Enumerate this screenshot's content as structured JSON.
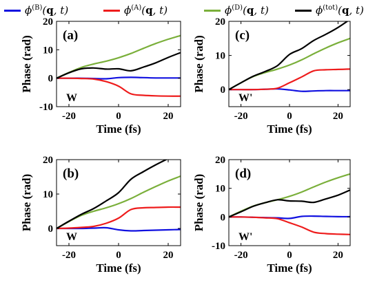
{
  "legend": {
    "items": [
      {
        "base": "ϕ",
        "sup": "(B)",
        "args_bold": "q",
        "args_rest": ", t",
        "color": "#1010e0"
      },
      {
        "base": "ϕ",
        "sup": "(A)",
        "args_bold": "q",
        "args_rest": ", t",
        "color": "#ee1c1c"
      },
      {
        "base": "ϕ",
        "sup": "(D)",
        "args_bold": "q",
        "args_rest": ", t",
        "color": "#7aaf3a"
      },
      {
        "base": "ϕ",
        "sup": "(tot)",
        "args_bold": "q",
        "args_rest": ", t",
        "color": "#000000"
      }
    ]
  },
  "chart_data": [
    {
      "panel": "(a)",
      "corner_label": "W",
      "type": "line",
      "xlabel": "Time (fs)",
      "ylabel": "Phase (rad)",
      "xlim": [
        -25,
        25
      ],
      "ylim": [
        -10,
        20
      ],
      "xticks": [
        -20,
        0,
        20
      ],
      "yticks": [
        -10,
        0,
        10,
        20
      ],
      "x": [
        -25,
        -20,
        -15,
        -10,
        -5,
        0,
        5,
        10,
        15,
        20,
        25
      ],
      "series": [
        {
          "key": "B",
          "values": [
            0,
            0,
            0,
            -0.1,
            -0.2,
            0.2,
            0.3,
            0.2,
            0.1,
            0.1,
            0.1
          ]
        },
        {
          "key": "A",
          "values": [
            0,
            0,
            -0.1,
            -0.3,
            -1.2,
            -2.8,
            -5.5,
            -6.0,
            -6.2,
            -6.3,
            -6.3
          ]
        },
        {
          "key": "D",
          "values": [
            0,
            2.0,
            3.8,
            5.0,
            6.0,
            7.2,
            8.7,
            10.5,
            12.2,
            13.7,
            15.0
          ]
        },
        {
          "key": "tot",
          "values": [
            0,
            1.9,
            3.3,
            3.6,
            3.2,
            3.3,
            2.6,
            3.9,
            5.4,
            7.3,
            9.0
          ]
        }
      ]
    },
    {
      "panel": "(b)",
      "corner_label": "W",
      "type": "line",
      "xlabel": "Time (fs)",
      "ylabel": "Phase (rad)",
      "xlim": [
        -25,
        25
      ],
      "ylim": [
        -5,
        20
      ],
      "xticks": [
        -20,
        0,
        20
      ],
      "yticks": [
        0,
        10,
        20
      ],
      "x": [
        -25,
        -20,
        -15,
        -10,
        -5,
        0,
        5,
        10,
        15,
        20,
        25
      ],
      "series": [
        {
          "key": "B",
          "values": [
            0,
            0,
            0,
            0.1,
            0.2,
            -0.4,
            -0.7,
            -0.6,
            -0.5,
            -0.4,
            -0.3
          ]
        },
        {
          "key": "A",
          "values": [
            0,
            0.1,
            0.3,
            0.6,
            1.5,
            3.0,
            5.5,
            6.0,
            6.1,
            6.2,
            6.2
          ]
        },
        {
          "key": "D",
          "values": [
            0,
            2.0,
            3.8,
            5.0,
            6.0,
            7.2,
            8.7,
            10.5,
            12.2,
            13.8,
            15.2
          ]
        },
        {
          "key": "tot",
          "values": [
            0,
            2.1,
            4.1,
            5.8,
            8.0,
            10.4,
            14.3,
            16.5,
            18.5,
            20.3,
            22.0
          ]
        }
      ]
    },
    {
      "panel": "(c)",
      "corner_label": "W'",
      "type": "line",
      "xlabel": "Time (fs)",
      "ylabel": "Phase (rad)",
      "xlim": [
        -25,
        25
      ],
      "ylim": [
        -5,
        20
      ],
      "xticks": [
        -20,
        0,
        20
      ],
      "yticks": [
        0,
        10,
        20
      ],
      "x": [
        -25,
        -20,
        -15,
        -10,
        -5,
        0,
        5,
        10,
        15,
        20,
        25
      ],
      "series": [
        {
          "key": "B",
          "values": [
            0,
            0,
            0,
            0.1,
            0.2,
            -0.1,
            -0.5,
            -0.4,
            -0.3,
            -0.3,
            -0.3
          ]
        },
        {
          "key": "A",
          "values": [
            0,
            0,
            0,
            0.1,
            0.4,
            2.0,
            3.7,
            5.5,
            5.8,
            5.9,
            6.0
          ]
        },
        {
          "key": "D",
          "values": [
            0,
            2.0,
            3.8,
            5.0,
            6.0,
            7.2,
            8.7,
            10.5,
            12.2,
            13.7,
            15.0
          ]
        },
        {
          "key": "tot",
          "values": [
            0,
            2.0,
            3.9,
            5.3,
            7.0,
            10.3,
            12.0,
            14.4,
            16.2,
            18.2,
            20.6
          ]
        }
      ]
    },
    {
      "panel": "(d)",
      "corner_label": "W'",
      "type": "line",
      "xlabel": "Time (fs)",
      "ylabel": "Phase (rad)",
      "xlim": [
        -25,
        25
      ],
      "ylim": [
        -10,
        20
      ],
      "xticks": [
        -20,
        0,
        20
      ],
      "yticks": [
        -10,
        0,
        10,
        20
      ],
      "x": [
        -25,
        -20,
        -15,
        -10,
        -5,
        0,
        5,
        10,
        15,
        20,
        25
      ],
      "series": [
        {
          "key": "B",
          "values": [
            0,
            0,
            -0.1,
            -0.2,
            -0.3,
            -0.5,
            0.2,
            0.3,
            0.2,
            0.1,
            0.1
          ]
        },
        {
          "key": "A",
          "values": [
            0,
            0,
            -0.1,
            -0.3,
            -0.6,
            -2.0,
            -3.5,
            -5.3,
            -5.8,
            -6.0,
            -6.1
          ]
        },
        {
          "key": "D",
          "values": [
            0,
            2.0,
            3.8,
            5.0,
            6.0,
            7.2,
            8.7,
            10.5,
            12.2,
            13.7,
            15.0
          ]
        },
        {
          "key": "tot",
          "values": [
            0,
            1.8,
            3.7,
            5.0,
            6.0,
            5.6,
            5.5,
            5.1,
            6.3,
            7.6,
            9.4
          ]
        }
      ]
    }
  ]
}
